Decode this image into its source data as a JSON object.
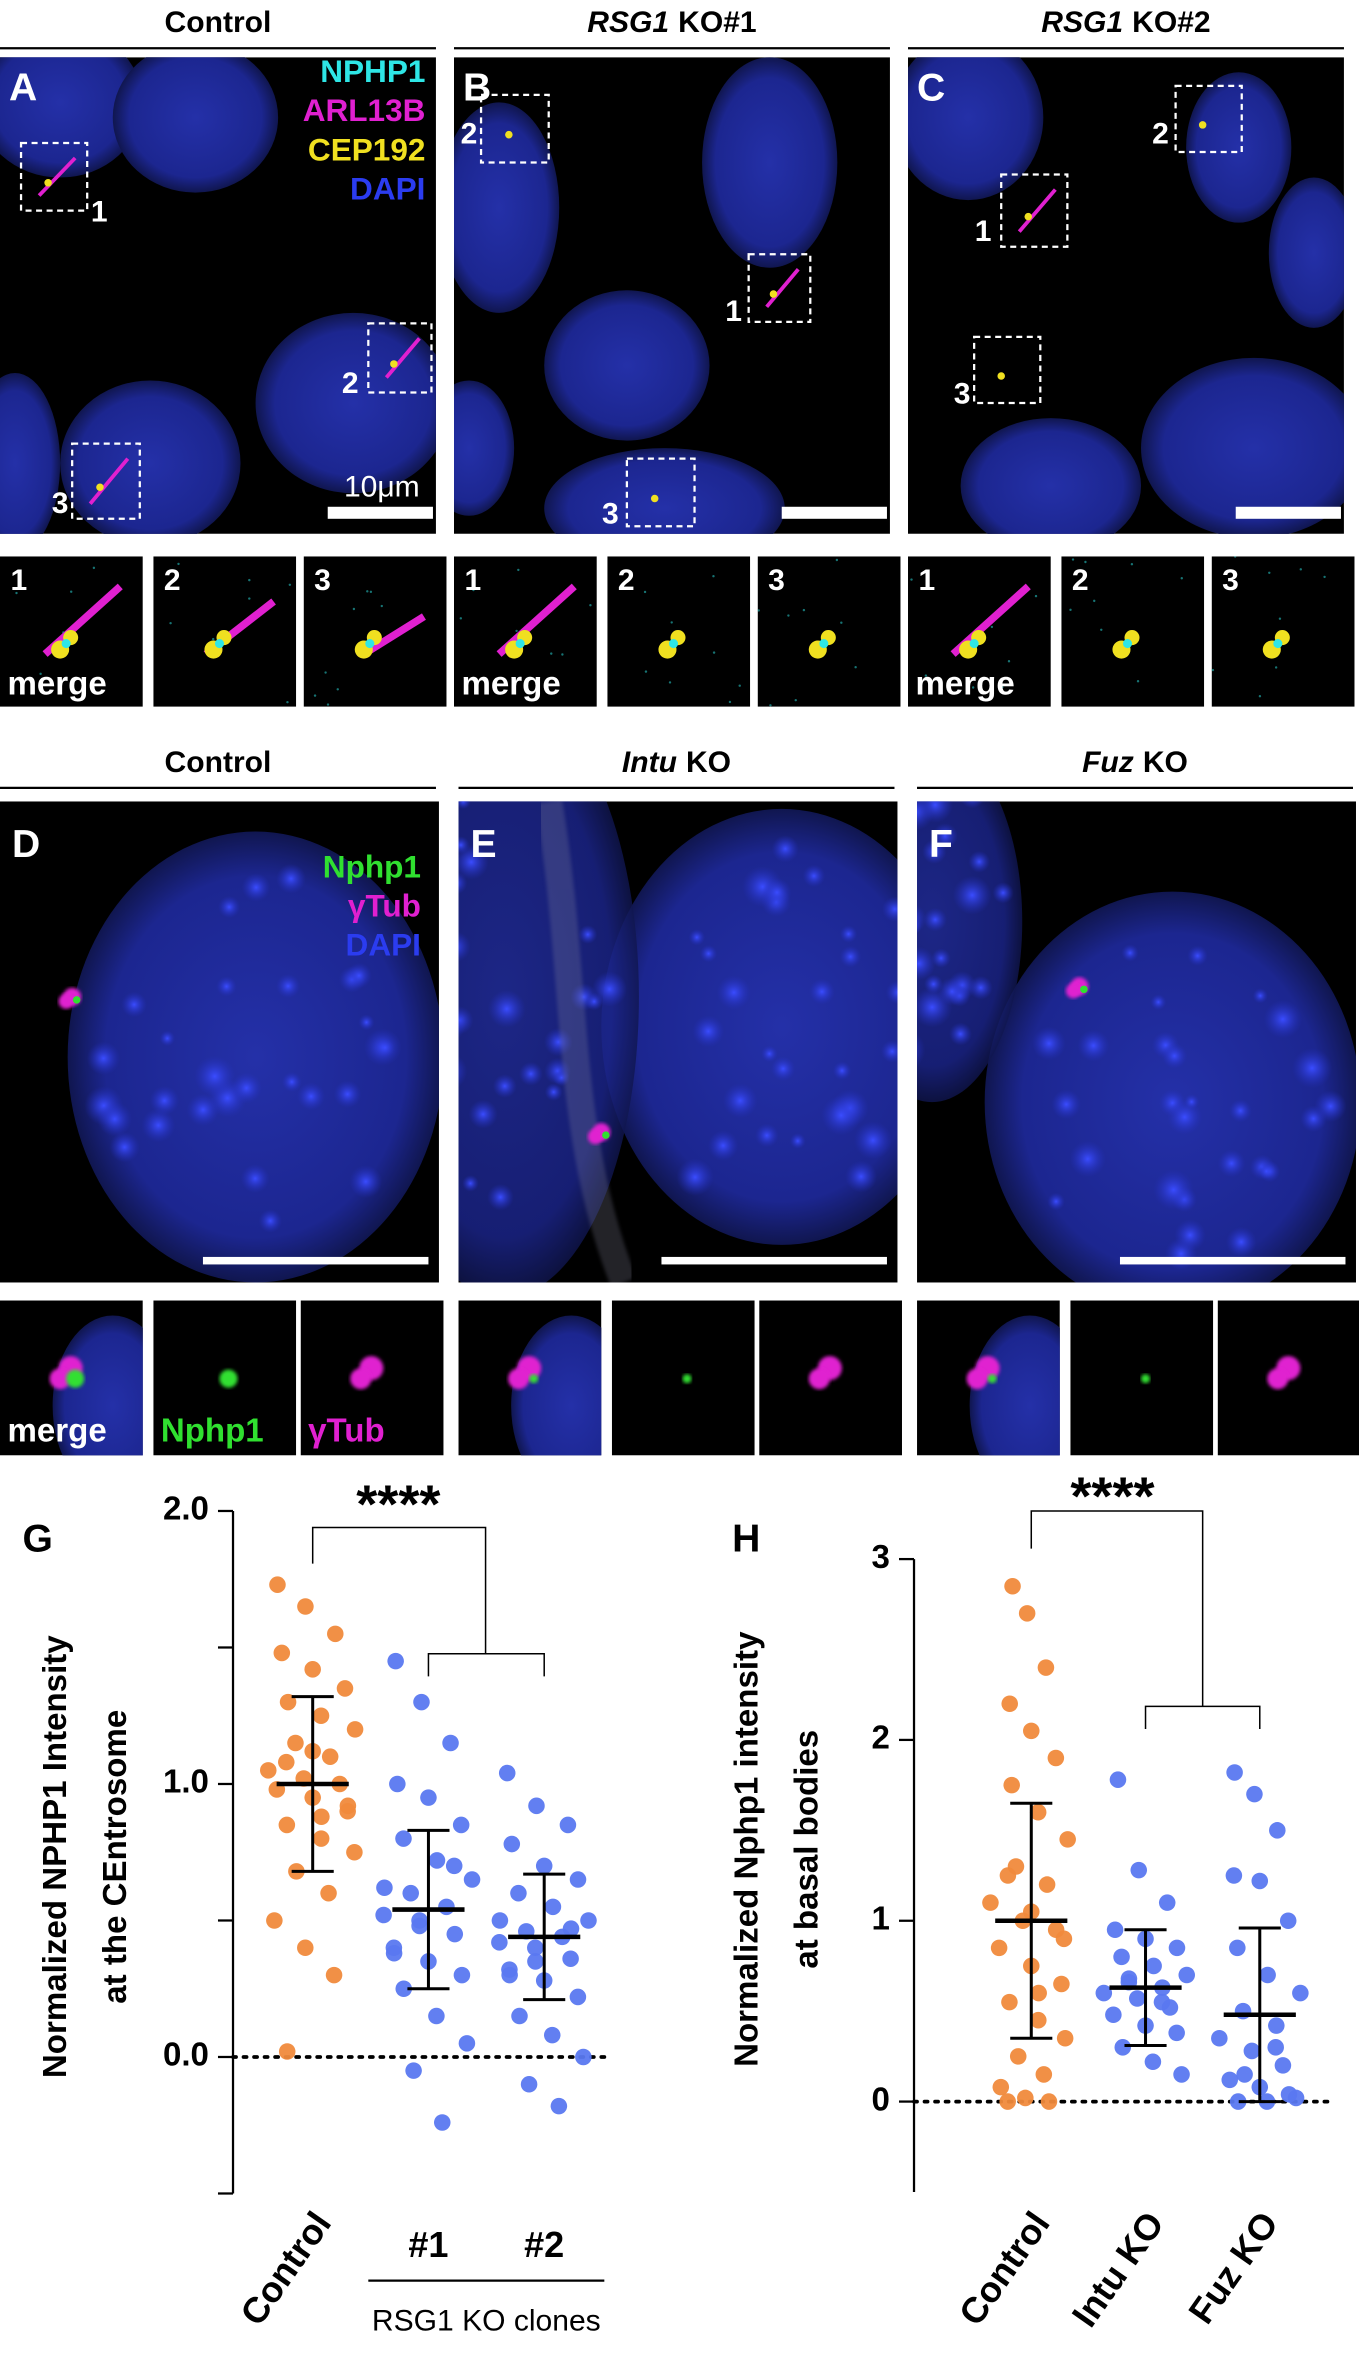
{
  "figure_top": {
    "headers": [
      {
        "text": "Control"
      },
      {
        "italic": "RSG1",
        "text": "KO#1"
      },
      {
        "italic": "RSG1",
        "text": "KO#2"
      }
    ],
    "panels": [
      {
        "letter": "A",
        "boxes": [
          "1",
          "2",
          "3"
        ],
        "insets": [
          "1",
          "2",
          "3"
        ]
      },
      {
        "letter": "B",
        "boxes": [
          "1",
          "2",
          "3"
        ],
        "insets": [
          "1",
          "2",
          "3"
        ]
      },
      {
        "letter": "C",
        "boxes": [
          "1",
          "2",
          "3"
        ],
        "insets": [
          "1",
          "2",
          "3"
        ]
      }
    ],
    "legend": [
      {
        "label": "NPHP1",
        "color": "#2ee6e6"
      },
      {
        "label": "ARL13B",
        "color": "#e020d0"
      },
      {
        "label": "CEP192",
        "color": "#f0e020"
      },
      {
        "label": "DAPI",
        "color": "#2b3cf0"
      }
    ],
    "scale_bar": "10μm",
    "merge": "merge"
  },
  "figure_bottom": {
    "headers": [
      {
        "text": "Control"
      },
      {
        "italic": "Intu",
        "text": "KO"
      },
      {
        "italic": "Fuz",
        "text": "KO"
      }
    ],
    "panels": [
      {
        "letter": "D"
      },
      {
        "letter": "E"
      },
      {
        "letter": "F"
      }
    ],
    "legend": [
      {
        "label": "Nphp1",
        "color": "#30e030"
      },
      {
        "label": "γTub",
        "color": "#e020d0"
      },
      {
        "label": "DAPI",
        "color": "#2b3cf0"
      }
    ],
    "inset_labels": [
      "merge",
      "Nphp1",
      "γTub"
    ]
  },
  "chart_data": [
    {
      "type": "strip",
      "panel": "G",
      "ylabel": [
        "Normalized NPHP1 Intensity",
        "at the CEntrosome"
      ],
      "categories": [
        "Control",
        "#1",
        "#2"
      ],
      "group_label": "RSG1 KO clones",
      "significance": "****",
      "ylim": [
        -0.5,
        2.0
      ],
      "yticks": [
        {
          "value": 0,
          "label": "0.0"
        },
        {
          "value": 1,
          "label": "1.0"
        },
        {
          "value": 2,
          "label": "2.0"
        }
      ],
      "minor_yticks": [
        -0.5,
        0.5,
        1.5
      ],
      "zero_line": true,
      "series": [
        {
          "color": "#f08a3c",
          "mean": 1.0,
          "sd": 0.32,
          "values": [
            1.73,
            1.65,
            1.55,
            1.48,
            1.42,
            1.35,
            1.3,
            1.25,
            1.2,
            1.15,
            1.1,
            1.05,
            1.02,
            1.0,
            0.98,
            0.95,
            0.9,
            0.85,
            0.8,
            0.75,
            0.68,
            0.6,
            0.5,
            0.4,
            0.3,
            0.02,
            1.12,
            0.92,
            1.08,
            0.88
          ]
        },
        {
          "color": "#5a78f0",
          "mean": 0.54,
          "sd": 0.29,
          "values": [
            1.45,
            1.3,
            1.15,
            1.0,
            0.95,
            0.85,
            0.8,
            0.72,
            0.65,
            0.6,
            0.55,
            0.52,
            0.5,
            0.45,
            0.4,
            0.35,
            0.3,
            0.25,
            0.15,
            0.05,
            -0.05,
            -0.24,
            0.62,
            0.48,
            0.7,
            0.38
          ]
        },
        {
          "color": "#5a78f0",
          "mean": 0.44,
          "sd": 0.23,
          "values": [
            1.04,
            0.92,
            0.85,
            0.78,
            0.7,
            0.65,
            0.6,
            0.55,
            0.5,
            0.46,
            0.44,
            0.42,
            0.4,
            0.36,
            0.32,
            0.28,
            0.22,
            0.15,
            0.08,
            0.0,
            -0.1,
            -0.18,
            0.5,
            0.35,
            0.47,
            0.3
          ]
        }
      ]
    },
    {
      "type": "strip",
      "panel": "H",
      "ylabel": [
        "Normalized Nphp1 intensity",
        "at basal bodies"
      ],
      "categories": [
        "Control",
        "Intu KO",
        "Fuz KO"
      ],
      "significance": "****",
      "ylim": [
        -0.5,
        3
      ],
      "yticks": [
        0,
        1,
        2,
        3
      ],
      "zero_line": true,
      "series": [
        {
          "color": "#f08a3c",
          "mean": 1.0,
          "sd": 0.65,
          "values": [
            2.85,
            2.7,
            2.4,
            2.2,
            2.05,
            1.9,
            1.75,
            1.6,
            1.45,
            1.3,
            1.2,
            1.1,
            1.0,
            0.95,
            0.85,
            0.75,
            0.65,
            0.55,
            0.45,
            0.35,
            0.25,
            0.15,
            0.08,
            0.02,
            0,
            0,
            1.05,
            0.9,
            1.25,
            0.6
          ]
        },
        {
          "color": "#5a78f0",
          "mean": 0.63,
          "sd": 0.32,
          "values": [
            1.78,
            1.28,
            1.1,
            0.95,
            0.9,
            0.85,
            0.8,
            0.75,
            0.7,
            0.66,
            0.63,
            0.6,
            0.57,
            0.52,
            0.48,
            0.42,
            0.38,
            0.3,
            0.22,
            0.15,
            0.68,
            0.55
          ]
        },
        {
          "color": "#5a78f0",
          "mean": 0.48,
          "sd": 0.48,
          "values": [
            1.82,
            1.7,
            1.5,
            1.25,
            1.22,
            1.0,
            0.85,
            0.7,
            0.6,
            0.5,
            0.42,
            0.35,
            0.28,
            0.2,
            0.12,
            0.08,
            0.04,
            0,
            0,
            0.02,
            0.15,
            0.3
          ]
        }
      ]
    }
  ]
}
